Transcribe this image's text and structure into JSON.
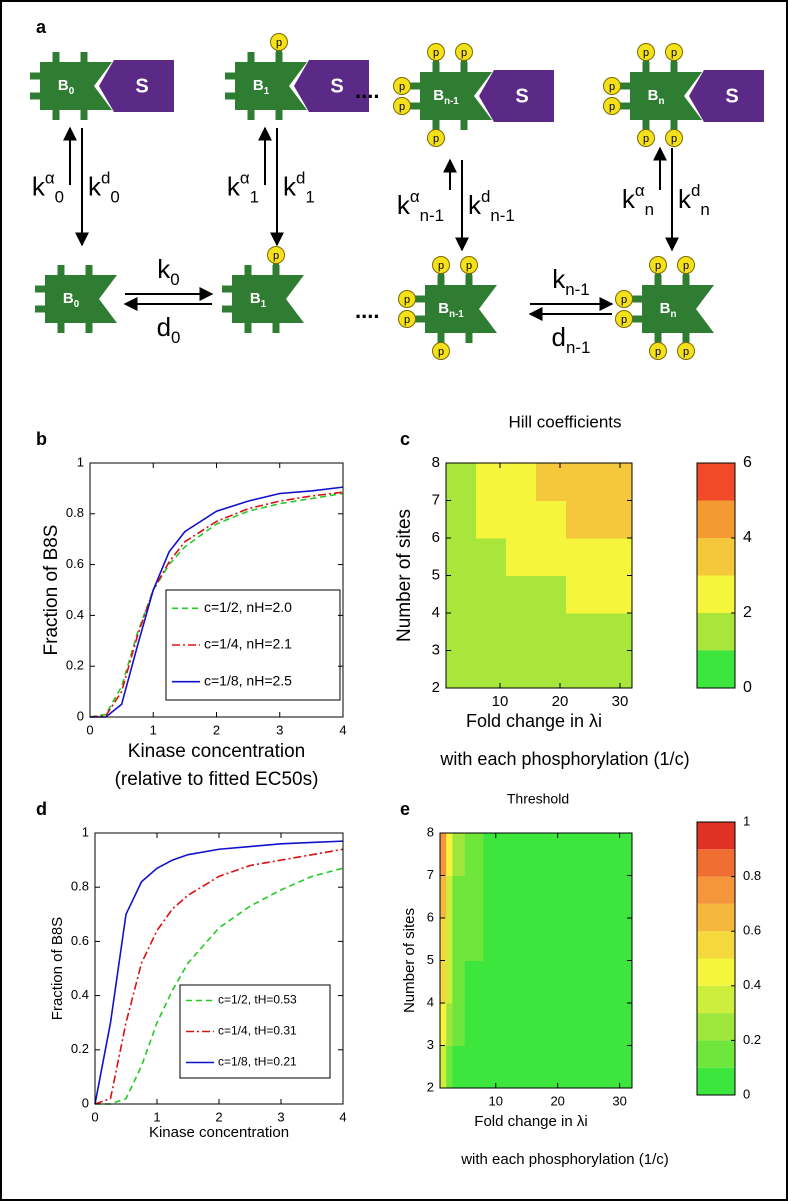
{
  "diagram": {
    "panel": "a",
    "phospho": "p",
    "complexes": [
      {
        "b": "B",
        "sub": "0",
        "s": "S"
      },
      {
        "b": "B",
        "sub": "1",
        "s": "S"
      },
      {
        "b": "B",
        "sub": "n-1",
        "s": "S"
      },
      {
        "b": "B",
        "sub": "n",
        "s": "S"
      }
    ],
    "free": [
      {
        "b": "B",
        "sub": "0"
      },
      {
        "b": "B",
        "sub": "1"
      },
      {
        "b": "B",
        "sub": "n-1"
      },
      {
        "b": "B",
        "sub": "n"
      }
    ],
    "vertical_rates": [
      {
        "up": {
          "k": "k",
          "sup": "α",
          "sub": "0"
        },
        "down": {
          "k": "k",
          "sup": "d",
          "sub": "0"
        }
      },
      {
        "up": {
          "k": "k",
          "sup": "α",
          "sub": "1"
        },
        "down": {
          "k": "k",
          "sup": "d",
          "sub": "1"
        }
      },
      {
        "up": {
          "k": "k",
          "sup": "α",
          "sub": "n-1"
        },
        "down": {
          "k": "k",
          "sup": "d",
          "sub": "n-1"
        }
      },
      {
        "up": {
          "k": "k",
          "sup": "α",
          "sub": "n"
        },
        "down": {
          "k": "k",
          "sup": "d",
          "sub": "n"
        }
      }
    ],
    "horizontal_rates": [
      {
        "fwd": {
          "k": "k",
          "sub": "0"
        },
        "rev": {
          "k": "d",
          "sub": "0"
        }
      },
      {
        "fwd": {
          "k": "k",
          "sub": "n-1"
        },
        "rev": {
          "k": "d",
          "sub": "n-1"
        }
      }
    ],
    "ellipses": [
      "....",
      "...."
    ]
  },
  "chart_data": [
    {
      "panel": "b",
      "type": "line",
      "ylabel": "Fraction of B8S",
      "xlabel": "Kinase concentration",
      "xlabel2": "(relative to fitted EC50s)",
      "x": [
        0,
        0.25,
        0.5,
        0.75,
        1,
        1.25,
        1.5,
        2,
        2.5,
        3,
        3.5,
        4
      ],
      "series": [
        {
          "name": "c=1/2, nH=2.0",
          "color": "#22cc22",
          "dash": "dashed",
          "values": [
            0,
            0.01,
            0.12,
            0.33,
            0.5,
            0.6,
            0.67,
            0.76,
            0.81,
            0.84,
            0.86,
            0.88
          ]
        },
        {
          "name": "c=1/4, nH=2.1",
          "color": "#dd1111",
          "dash": "dashdot",
          "values": [
            0,
            0.005,
            0.1,
            0.32,
            0.5,
            0.61,
            0.69,
            0.77,
            0.82,
            0.85,
            0.87,
            0.885
          ]
        },
        {
          "name": "c=1/8, nH=2.5",
          "color": "#1111cc",
          "dash": "solid",
          "values": [
            0,
            0,
            0.05,
            0.28,
            0.5,
            0.65,
            0.73,
            0.81,
            0.85,
            0.88,
            0.89,
            0.905
          ]
        }
      ],
      "xlim": [
        0,
        4
      ],
      "ylim": [
        0,
        1
      ],
      "xticks": [
        0,
        1,
        2,
        3,
        4
      ],
      "yticks": [
        0,
        0.2,
        0.4,
        0.6,
        0.8,
        1
      ],
      "legend": "lower right"
    },
    {
      "panel": "c",
      "type": "heatmap",
      "title": "Hill coefficients",
      "ylabel": "Number of sites",
      "xlabel": "Fold change in λi",
      "xlabel2": "with each phosphorylation (1/c)",
      "x_edges": [
        1,
        6,
        11,
        16,
        21,
        26,
        32
      ],
      "y_edges": [
        2,
        3,
        4,
        5,
        6,
        7,
        8
      ],
      "z": [
        [
          1.3,
          1.4,
          1.5,
          1.5,
          1.5,
          1.5
        ],
        [
          1.5,
          1.6,
          1.7,
          1.8,
          1.9,
          1.9
        ],
        [
          1.6,
          1.8,
          1.9,
          1.95,
          2.0,
          2.1
        ],
        [
          1.7,
          1.9,
          2.1,
          2.3,
          2.5,
          2.6
        ],
        [
          1.8,
          2.2,
          2.6,
          2.8,
          3.0,
          3.2
        ],
        [
          1.9,
          2.4,
          2.9,
          3.2,
          3.4,
          3.6
        ]
      ],
      "xlim": [
        1,
        32
      ],
      "ylim": [
        2,
        8
      ],
      "xticks": [
        10,
        20,
        30
      ],
      "yticks": [
        2,
        3,
        4,
        5,
        6,
        7,
        8
      ],
      "levels": [
        0,
        1,
        2,
        3,
        4,
        5,
        6
      ],
      "colors": [
        "#3ce63c",
        "#a8e63c",
        "#f5f53c",
        "#f5c83c",
        "#f59a32",
        "#f04a28"
      ],
      "cbar_ticks": [
        0,
        2,
        4,
        6
      ]
    },
    {
      "panel": "d",
      "type": "line",
      "ylabel": "Fraction of B8S",
      "xlabel": "Kinase concentration",
      "x": [
        0,
        0.25,
        0.5,
        0.75,
        1,
        1.25,
        1.5,
        2,
        2.5,
        3,
        3.5,
        4
      ],
      "series": [
        {
          "name": "c=1/2, tH=0.53",
          "color": "#22cc22",
          "dash": "dashed",
          "values": [
            0,
            0,
            0.02,
            0.14,
            0.3,
            0.42,
            0.52,
            0.65,
            0.73,
            0.79,
            0.84,
            0.87
          ]
        },
        {
          "name": "c=1/4, tH=0.31",
          "color": "#dd1111",
          "dash": "dashdot",
          "values": [
            0,
            0.02,
            0.3,
            0.52,
            0.64,
            0.72,
            0.77,
            0.84,
            0.88,
            0.9,
            0.92,
            0.94
          ]
        },
        {
          "name": "c=1/8, tH=0.21",
          "color": "#1111cc",
          "dash": "solid",
          "values": [
            0,
            0.3,
            0.7,
            0.82,
            0.87,
            0.9,
            0.92,
            0.94,
            0.95,
            0.96,
            0.965,
            0.97
          ]
        }
      ],
      "xlim": [
        0,
        4
      ],
      "ylim": [
        0,
        1
      ],
      "xticks": [
        0,
        1,
        2,
        3,
        4
      ],
      "yticks": [
        0,
        0.2,
        0.4,
        0.6,
        0.8,
        1
      ],
      "legend": "lower right"
    },
    {
      "panel": "e",
      "type": "heatmap",
      "title": "Threshold",
      "ylabel": "Number of sites",
      "xlabel": "Fold change in λi",
      "xlabel2": "with each phosphorylation (1/c)",
      "x_edges": [
        1,
        2,
        3,
        5,
        8,
        32
      ],
      "y_edges": [
        2,
        3,
        4,
        5,
        6,
        7,
        8
      ],
      "z": [
        [
          0.35,
          0.15,
          0.08,
          0.05,
          0.03
        ],
        [
          0.45,
          0.25,
          0.12,
          0.06,
          0.03
        ],
        [
          0.5,
          0.3,
          0.15,
          0.08,
          0.04
        ],
        [
          0.55,
          0.32,
          0.15,
          0.1,
          0.04
        ],
        [
          0.6,
          0.35,
          0.18,
          0.11,
          0.05
        ],
        [
          0.7,
          0.4,
          0.2,
          0.12,
          0.05
        ]
      ],
      "xlim": [
        1,
        32
      ],
      "ylim": [
        2,
        8
      ],
      "xticks": [
        10,
        20,
        30
      ],
      "yticks": [
        2,
        3,
        4,
        5,
        6,
        7,
        8
      ],
      "levels": [
        0,
        0.1,
        0.2,
        0.3,
        0.4,
        0.5,
        0.6,
        0.7,
        0.8,
        0.9,
        1
      ],
      "colors": [
        "#3ce63c",
        "#6ee63c",
        "#9ee63c",
        "#cdee3c",
        "#f5f53c",
        "#f5d83c",
        "#f5b83c",
        "#f5963c",
        "#f06e32",
        "#e03224"
      ],
      "cbar_ticks": [
        0,
        0.2,
        0.4,
        0.6,
        0.8,
        1
      ]
    }
  ]
}
